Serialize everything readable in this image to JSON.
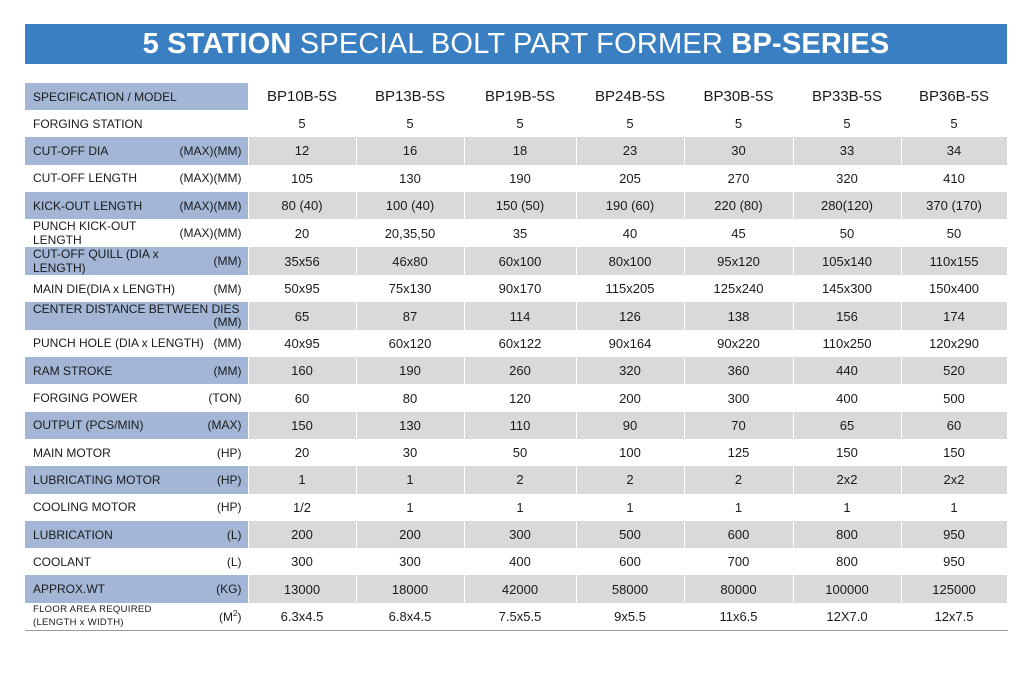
{
  "banner": {
    "part1": "5 STATION",
    "part2": " SPECIAL BOLT PART FORMER ",
    "part3": "BP-SERIES"
  },
  "table": {
    "header": {
      "label": "SPECIFICATION  /  MODEL",
      "models": [
        "BP10B-5S",
        "BP13B-5S",
        "BP19B-5S",
        "BP24B-5S",
        "BP30B-5S",
        "BP33B-5S",
        "BP36B-5S"
      ]
    },
    "rows": [
      {
        "name": "FORGING STATION",
        "unit": "",
        "values": [
          "5",
          "5",
          "5",
          "5",
          "5",
          "5",
          "5"
        ]
      },
      {
        "name": "CUT-OFF DIA",
        "unit": "(MAX)(MM)",
        "values": [
          "12",
          "16",
          "18",
          "23",
          "30",
          "33",
          "34"
        ]
      },
      {
        "name": "CUT-OFF LENGTH",
        "unit": "(MAX)(MM)",
        "values": [
          "105",
          "130",
          "190",
          "205",
          "270",
          "320",
          "410"
        ]
      },
      {
        "name": "KICK-OUT LENGTH",
        "unit": "(MAX)(MM)",
        "values": [
          "80 (40)",
          "100 (40)",
          "150 (50)",
          "190 (60)",
          "220 (80)",
          "280(120)",
          "370 (170)"
        ]
      },
      {
        "name": "PUNCH KICK-OUT LENGTH",
        "unit": "(MAX)(MM)",
        "values": [
          "20",
          "20,35,50",
          "35",
          "40",
          "45",
          "50",
          "50"
        ]
      },
      {
        "name": "CUT-OFF QUILL (DIA x LENGTH)",
        "unit": "(MM)",
        "values": [
          "35x56",
          "46x80",
          "60x100",
          "80x100",
          "95x120",
          "105x140",
          "110x155"
        ]
      },
      {
        "name": "MAIN DIE(DIA x LENGTH)",
        "unit": "(MM)",
        "values": [
          "50x95",
          "75x130",
          "90x170",
          "115x205",
          "125x240",
          "145x300",
          "150x400"
        ]
      },
      {
        "name": "CENTER DISTANCE BETWEEN DIES",
        "unit": "(MM)",
        "twoLine": true,
        "values": [
          "65",
          "87",
          "114",
          "126",
          "138",
          "156",
          "174"
        ]
      },
      {
        "name": "PUNCH HOLE (DIA x LENGTH)",
        "unit": "(MM)",
        "values": [
          "40x95",
          "60x120",
          "60x122",
          "90x164",
          "90x220",
          "110x250",
          "120x290"
        ]
      },
      {
        "name": "RAM STROKE",
        "unit": "(MM)",
        "values": [
          "160",
          "190",
          "260",
          "320",
          "360",
          "440",
          "520"
        ]
      },
      {
        "name": "FORGING POWER",
        "unit": "(TON)",
        "values": [
          "60",
          "80",
          "120",
          "200",
          "300",
          "400",
          "500"
        ]
      },
      {
        "name": "OUTPUT (PCS/MIN)",
        "unit": "(MAX)",
        "values": [
          "150",
          "130",
          "110",
          "90",
          "70",
          "65",
          "60"
        ]
      },
      {
        "name": "MAIN MOTOR",
        "unit": "(HP)",
        "values": [
          "20",
          "30",
          "50",
          "100",
          "125",
          "150",
          "150"
        ]
      },
      {
        "name": "LUBRICATING MOTOR",
        "unit": "(HP)",
        "values": [
          "1",
          "1",
          "2",
          "2",
          "2",
          "2x2",
          "2x2"
        ]
      },
      {
        "name": "COOLING MOTOR",
        "unit": "(HP)",
        "values": [
          "1/2",
          "1",
          "1",
          "1",
          "1",
          "1",
          "1"
        ]
      },
      {
        "name": "LUBRICATION",
        "unit": "(L)",
        "values": [
          "200",
          "200",
          "300",
          "500",
          "600",
          "800",
          "950"
        ]
      },
      {
        "name": "COOLANT",
        "unit": "(L)",
        "values": [
          "300",
          "300",
          "400",
          "600",
          "700",
          "800",
          "950"
        ]
      },
      {
        "name": "APPROX.WT",
        "unit": "(KG)",
        "values": [
          "13000",
          "18000",
          "42000",
          "58000",
          "80000",
          "100000",
          "125000"
        ]
      },
      {
        "name": "FLOOR AREA REQUIRED",
        "name2": "(LENGTH x WIDTH)",
        "unit": "(M",
        "unitSup": "2",
        "unitEnd": ")",
        "floor": true,
        "values": [
          "6.3x4.5",
          "6.8x4.5",
          "7.5x5.5",
          "9x5.5",
          "11x6.5",
          "12X7.0",
          "12x7.5"
        ]
      }
    ]
  }
}
